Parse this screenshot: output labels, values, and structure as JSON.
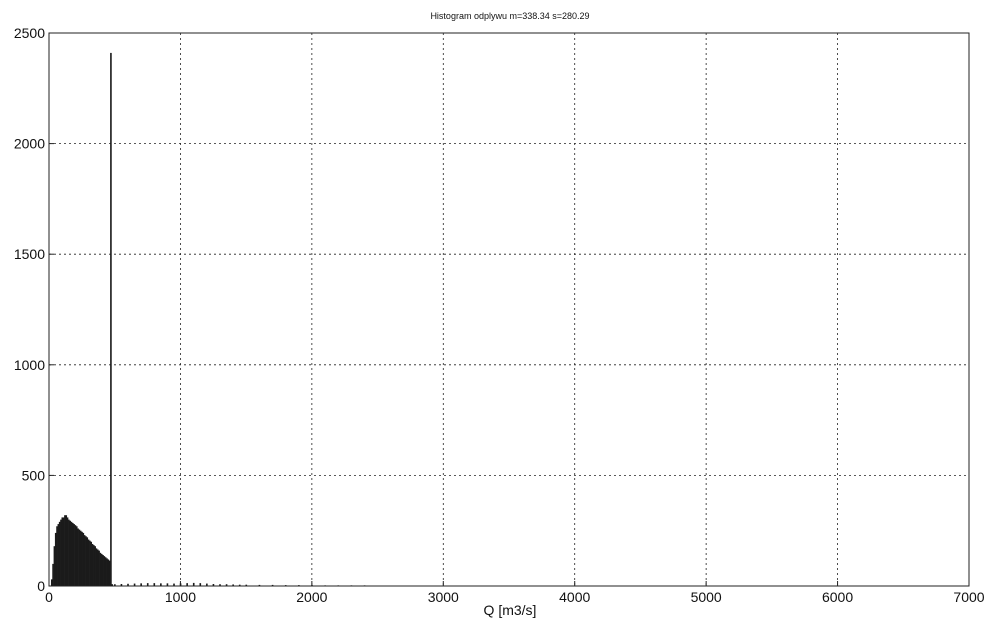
{
  "chart_data": {
    "type": "bar",
    "title": "Histogram odplywu m=338.34 s=280.29",
    "xlabel": "Q [m3/s]",
    "ylabel": "",
    "xlim": [
      0,
      7000
    ],
    "ylim": [
      0,
      2500
    ],
    "xticks": [
      "0",
      "1000",
      "2000",
      "3000",
      "4000",
      "5000",
      "6000",
      "7000"
    ],
    "yticks": [
      "0",
      "500",
      "1000",
      "1500",
      "2000",
      "2500"
    ],
    "grid": true,
    "bin_width": 10,
    "series": [
      {
        "x": [
          20,
          30,
          40,
          50,
          60,
          70,
          80,
          90,
          100,
          110,
          120,
          130,
          140,
          150,
          160,
          170,
          180,
          190,
          200,
          210,
          220,
          230,
          240,
          250,
          260,
          270,
          280,
          290,
          300,
          310,
          320,
          330,
          340,
          350,
          360,
          370,
          380,
          390,
          400,
          410,
          420,
          430,
          440,
          450,
          460,
          470,
          480,
          500,
          550,
          600,
          650,
          700,
          750,
          800,
          850,
          900,
          950,
          1000,
          1050,
          1100,
          1150,
          1200,
          1250,
          1300,
          1350,
          1400,
          1450,
          1500,
          1600,
          1700,
          1800,
          1900,
          2000,
          2100,
          2200,
          2300,
          2400,
          2500,
          2600,
          2800,
          3000,
          3500,
          4000,
          4400,
          4800,
          5500,
          6000,
          6800
        ],
        "values": [
          30,
          100,
          180,
          240,
          270,
          280,
          290,
          300,
          310,
          310,
          320,
          320,
          310,
          300,
          295,
          290,
          285,
          280,
          275,
          270,
          260,
          255,
          250,
          245,
          240,
          230,
          225,
          220,
          210,
          205,
          200,
          190,
          185,
          180,
          170,
          165,
          160,
          150,
          145,
          140,
          135,
          130,
          125,
          120,
          115,
          2410,
          8,
          8,
          9,
          10,
          11,
          12,
          13,
          13,
          12,
          12,
          11,
          12,
          13,
          14,
          13,
          11,
          9,
          8,
          8,
          7,
          6,
          6,
          5,
          5,
          4,
          4,
          4,
          3,
          3,
          3,
          3,
          2,
          2,
          2,
          2,
          1,
          1,
          1,
          1,
          1,
          1,
          2
        ]
      }
    ]
  }
}
